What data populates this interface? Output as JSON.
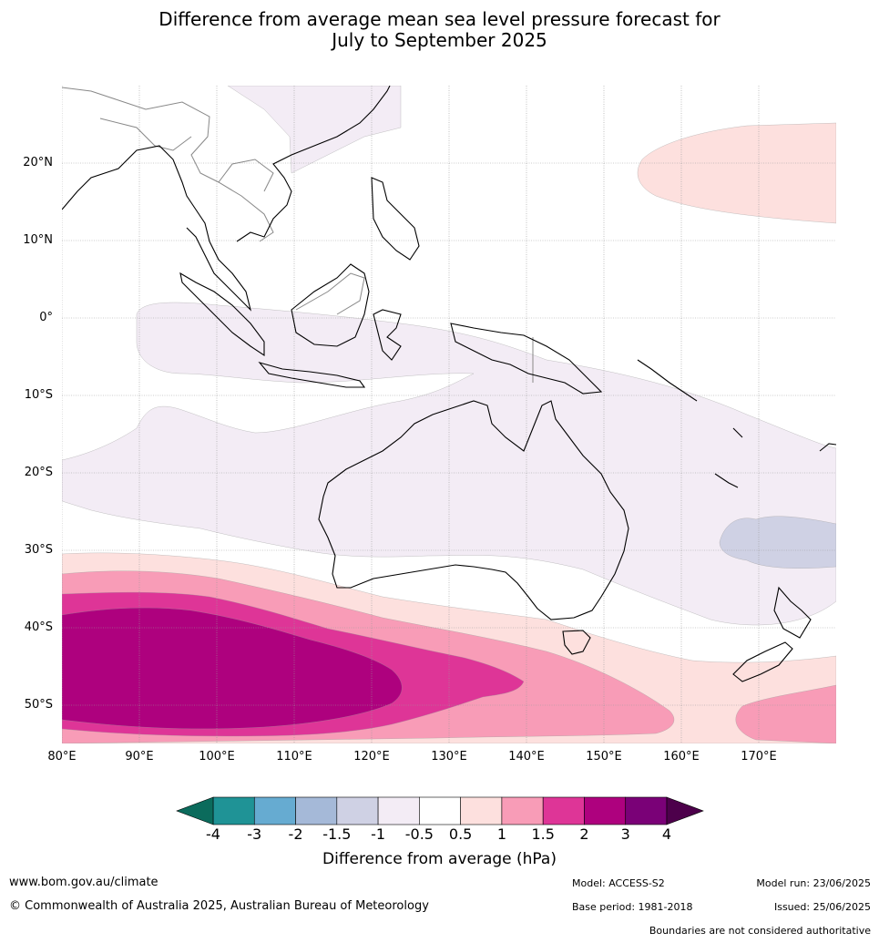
{
  "title": {
    "line1": "Difference from average mean sea level pressure forecast for",
    "line2": "July to September 2025"
  },
  "map": {
    "lat_labels": [
      "20°N",
      "10°N",
      "0°",
      "10°S",
      "20°S",
      "30°S",
      "40°S",
      "50°S"
    ],
    "lon_labels": [
      "80°E",
      "90°E",
      "100°E",
      "110°E",
      "120°E",
      "130°E",
      "140°E",
      "150°E",
      "160°E",
      "170°E"
    ],
    "colors": {
      "neg0_5": "#f3ecf5",
      "neg1": "#cfd1e4",
      "pos0_5": "#fde0de",
      "pos1": "#f89cb7",
      "pos1_5": "#de3597",
      "pos2": "#ae017e",
      "coast": "#000000",
      "borders": "#888888",
      "grid": "#aaaaaa"
    }
  },
  "colorbar": {
    "ticks": [
      "-4",
      "-3",
      "-2",
      "-1.5",
      "-1",
      "-0.5",
      "0.5",
      "1",
      "1.5",
      "2",
      "3",
      "4"
    ],
    "colors": [
      "#1f9396",
      "#66abd1",
      "#a5b9d8",
      "#cfd1e4",
      "#f3ecf5",
      "#ffffff",
      "#fde0de",
      "#f89cb7",
      "#de3597",
      "#ae017e",
      "#7a0177"
    ],
    "under_color": "#0b6b5c",
    "over_color": "#4d004b",
    "label": "Difference from average (hPa)"
  },
  "footer": {
    "website": "www.bom.gov.au/climate",
    "copyright": "© Commonwealth of Australia 2025, Australian Bureau of Meteorology",
    "model": "Model: ACCESS-S2",
    "base_period": "Base period: 1981-2018",
    "model_run": "Model run: 23/06/2025",
    "issued": "Issued: 25/06/2025",
    "disclaimer": "Boundaries are not considered authoritative"
  }
}
